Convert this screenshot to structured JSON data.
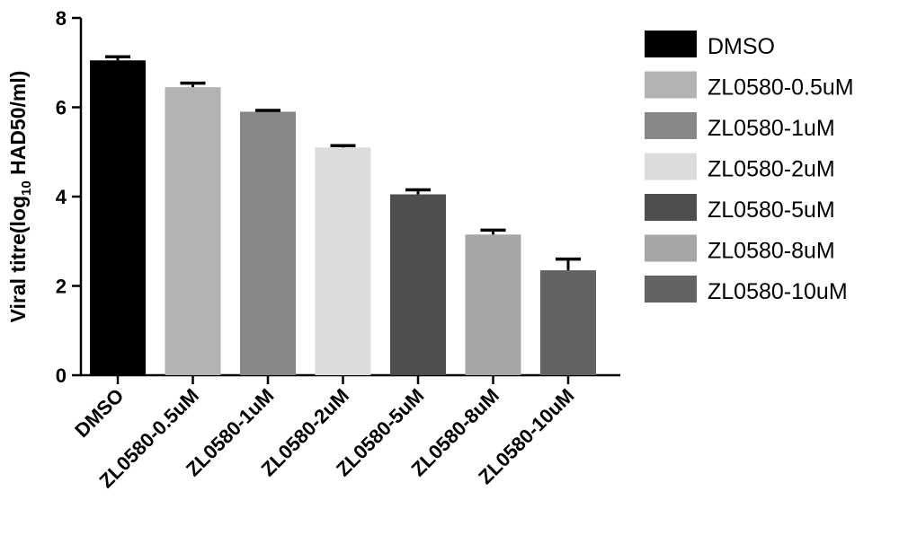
{
  "chart_data": {
    "type": "bar",
    "categories": [
      "DMSO",
      "ZL0580-0.5uM",
      "ZL0580-1uM",
      "ZL0580-2uM",
      "ZL0580-5uM",
      "ZL0580-8uM",
      "ZL0580-10uM"
    ],
    "values": [
      7.05,
      6.45,
      5.9,
      5.1,
      4.05,
      3.15,
      2.35
    ],
    "errors": [
      0.08,
      0.09,
      0.03,
      0.04,
      0.1,
      0.1,
      0.25
    ],
    "colors": [
      "#000000",
      "#b3b3b3",
      "#878787",
      "#dcdcdc",
      "#4e4e4e",
      "#a6a6a6",
      "#636363"
    ],
    "ylabel": "Viral titre(log",
    "ylabel_sub": "10",
    "ylabel_tail": " HAD50/ml)",
    "ylim": [
      0,
      8
    ],
    "yticks": [
      "0",
      "2",
      "4",
      "6",
      "8"
    ],
    "legend": [
      "DMSO",
      "ZL0580-0.5uM",
      "ZL0580-1uM",
      "ZL0580-2uM",
      "ZL0580-5uM",
      "ZL0580-8uM",
      "ZL0580-10uM"
    ],
    "legend_position": "right",
    "grid": false
  }
}
